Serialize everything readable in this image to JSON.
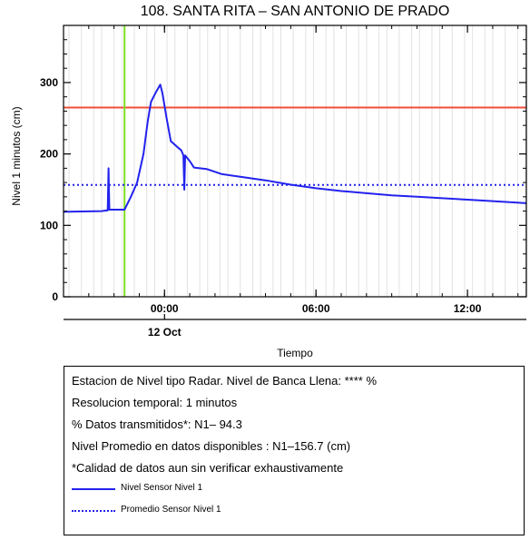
{
  "chart_data": {
    "type": "line",
    "title": "108. SANTA RITA – SAN ANTONIO DE PRADO",
    "ylabel": "Nivel 1 minutos (cm)",
    "xlabel": "Tiempo",
    "date_label": "12 Oct",
    "ylim": [
      0,
      380
    ],
    "yticks": [
      0,
      100,
      200,
      300
    ],
    "xlim": [
      "2021-10-11T20:00",
      "2021-10-12T14:20"
    ],
    "xticks": [
      {
        "time": "2021-10-12T00:00",
        "label": "00:00"
      },
      {
        "time": "2021-10-12T06:00",
        "label": "06:00"
      },
      {
        "time": "2021-10-12T12:00",
        "label": "12:00"
      }
    ],
    "grid": "vertical light gray lines",
    "reference_lines": [
      {
        "type": "horizontal",
        "value": 265,
        "color": "#f04e3a"
      },
      {
        "type": "vertical",
        "time": "2021-10-11T22:25",
        "color": "#7ee020"
      }
    ],
    "series": [
      {
        "name": "Nivel Sensor Nivel 1",
        "style": "solid",
        "color": "#2222ee",
        "points": [
          [
            "2021-10-11T20:00",
            119
          ],
          [
            "2021-10-11T21:30",
            120
          ],
          [
            "2021-10-11T21:45",
            121
          ],
          [
            "2021-10-11T21:47",
            180
          ],
          [
            "2021-10-11T21:49",
            122
          ],
          [
            "2021-10-11T22:25",
            122
          ],
          [
            "2021-10-11T22:40",
            140
          ],
          [
            "2021-10-11T22:55",
            160
          ],
          [
            "2021-10-11T23:10",
            200
          ],
          [
            "2021-10-11T23:20",
            245
          ],
          [
            "2021-10-11T23:28",
            273
          ],
          [
            "2021-10-11T23:40",
            287
          ],
          [
            "2021-10-11T23:50",
            297
          ],
          [
            "2021-10-11T23:55",
            285
          ],
          [
            "2021-10-12T00:05",
            250
          ],
          [
            "2021-10-12T00:15",
            218
          ],
          [
            "2021-10-12T00:30",
            210
          ],
          [
            "2021-10-12T00:40",
            205
          ],
          [
            "2021-10-12T00:45",
            198
          ],
          [
            "2021-10-12T00:47",
            150
          ],
          [
            "2021-10-12T00:49",
            198
          ],
          [
            "2021-10-12T01:00",
            190
          ],
          [
            "2021-10-12T01:10",
            181
          ],
          [
            "2021-10-12T01:40",
            179
          ],
          [
            "2021-10-12T02:15",
            172
          ],
          [
            "2021-10-12T03:00",
            168
          ],
          [
            "2021-10-12T04:00",
            163
          ],
          [
            "2021-10-12T05:00",
            157
          ],
          [
            "2021-10-12T06:00",
            152
          ],
          [
            "2021-10-12T07:00",
            148
          ],
          [
            "2021-10-12T08:00",
            145
          ],
          [
            "2021-10-12T09:00",
            142
          ],
          [
            "2021-10-12T10:00",
            140
          ],
          [
            "2021-10-12T11:00",
            138
          ],
          [
            "2021-10-12T12:00",
            136
          ],
          [
            "2021-10-12T13:00",
            134
          ],
          [
            "2021-10-12T14:20",
            131
          ]
        ]
      },
      {
        "name": "Promedio Sensor Nivel 1",
        "style": "dotted",
        "color": "#2222ee",
        "points": [
          [
            "2021-10-11T20:00",
            156.7
          ],
          [
            "2021-10-12T14:20",
            156.7
          ]
        ]
      }
    ]
  },
  "info_box": {
    "lines": [
      "Estacion de Nivel tipo Radar. Nivel de Banca Llena: **** %",
      "Resolucion temporal: 1 minutos",
      "% Datos transmitidos*: N1– 94.3",
      "Nivel Promedio en datos disponibles : N1–156.7 (cm)",
      "*Calidad de datos aun sin verificar exhaustivamente"
    ]
  }
}
